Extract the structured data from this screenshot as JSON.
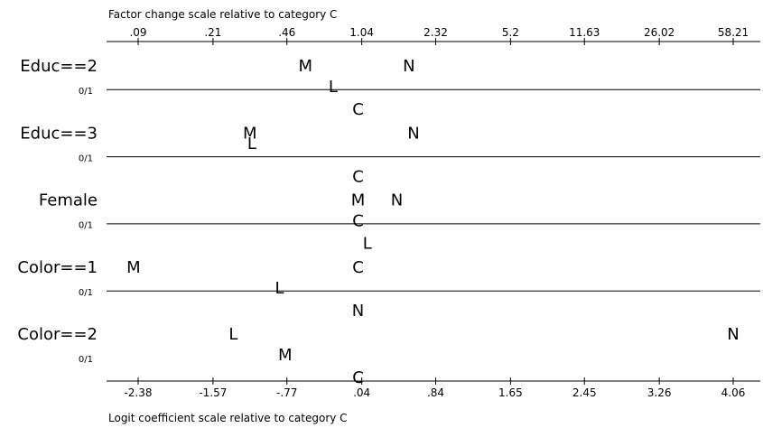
{
  "chart_data": {
    "type": "scatter",
    "title": "",
    "top_axis": {
      "label": "Factor change scale relative to category C",
      "ticks": [
        {
          "value": -2.38,
          "label": ".09"
        },
        {
          "value": -1.57,
          "label": ".21"
        },
        {
          "value": -0.77,
          "label": ".46"
        },
        {
          "value": 0.04,
          "label": "1.04"
        },
        {
          "value": 0.84,
          "label": "2.32"
        },
        {
          "value": 1.65,
          "label": "5.2"
        },
        {
          "value": 2.45,
          "label": "11.63"
        },
        {
          "value": 3.26,
          "label": "26.02"
        },
        {
          "value": 4.06,
          "label": "58.21"
        }
      ]
    },
    "bottom_axis": {
      "label": "Logit coefficient scale relative to category C",
      "ticks": [
        {
          "value": -2.38,
          "label": "-2.38"
        },
        {
          "value": -1.57,
          "label": "-1.57"
        },
        {
          "value": -0.77,
          "label": "-.77"
        },
        {
          "value": 0.04,
          "label": ".04"
        },
        {
          "value": 0.84,
          "label": ".84"
        },
        {
          "value": 1.65,
          "label": "1.65"
        },
        {
          "value": 2.45,
          "label": "2.45"
        },
        {
          "value": 3.26,
          "label": "3.26"
        },
        {
          "value": 4.06,
          "label": "4.06"
        }
      ]
    },
    "xlim": [
      -2.6,
      4.2
    ],
    "grid": false,
    "variables": [
      {
        "name": "Educ==2",
        "range_label": "0/1",
        "points": [
          {
            "label": "M",
            "x": -0.57,
            "level": 0
          },
          {
            "label": "N",
            "x": 0.55,
            "level": 0
          },
          {
            "label": "L",
            "x": -0.27,
            "level": 1
          },
          {
            "label": "C",
            "x": 0.0,
            "level": 2
          }
        ]
      },
      {
        "name": "Educ==3",
        "range_label": "0/1",
        "points": [
          {
            "label": "M",
            "x": -1.17,
            "level": 0
          },
          {
            "label": "N",
            "x": 0.6,
            "level": 0
          },
          {
            "label": "L",
            "x": -1.15,
            "level": 0.5
          },
          {
            "label": "C",
            "x": 0.0,
            "level": 2
          }
        ]
      },
      {
        "name": "Female",
        "range_label": "0/1",
        "points": [
          {
            "label": "M",
            "x": 0.0,
            "level": 0
          },
          {
            "label": "N",
            "x": 0.42,
            "level": 0
          },
          {
            "label": "C",
            "x": 0.0,
            "level": 1
          },
          {
            "label": "L",
            "x": 0.1,
            "level": 2
          }
        ]
      },
      {
        "name": "Color==1",
        "range_label": "0/1",
        "points": [
          {
            "label": "M",
            "x": -2.43,
            "level": 0
          },
          {
            "label": "C",
            "x": 0.0,
            "level": 0
          },
          {
            "label": "L",
            "x": -0.85,
            "level": 1
          },
          {
            "label": "N",
            "x": 0.0,
            "level": 2
          }
        ]
      },
      {
        "name": "Color==2",
        "range_label": "0/1",
        "points": [
          {
            "label": "L",
            "x": -1.35,
            "level": 0
          },
          {
            "label": "N",
            "x": 4.06,
            "level": 0
          },
          {
            "label": "M",
            "x": -0.79,
            "level": 1
          },
          {
            "label": "C",
            "x": 0.0,
            "level": 2
          }
        ]
      }
    ]
  }
}
